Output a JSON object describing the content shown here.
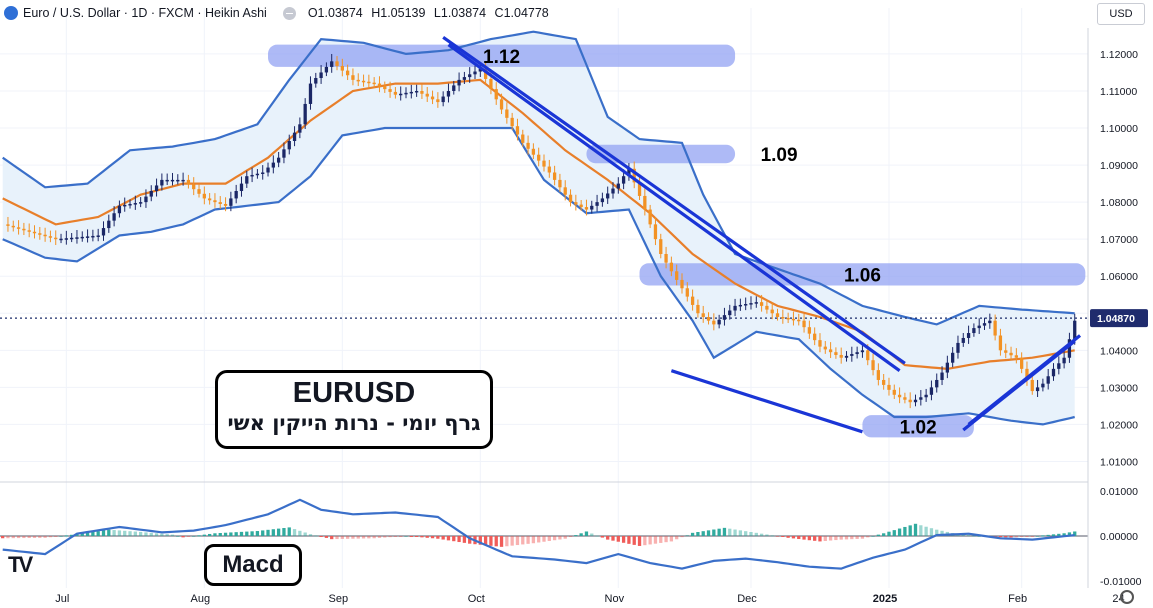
{
  "header": {
    "title": "Euro / U.S. Dollar · 1D · FXCM · Heikin Ashi",
    "open": "O1.03874",
    "high": "H1.05139",
    "low": "L1.03874",
    "close": "C1.04778"
  },
  "currency_label": "USD",
  "overlay": {
    "symbol": "EURUSD",
    "subtitle": "גרף יומי - נרות הייקין אשי",
    "indicator_label": "Macd"
  },
  "logo": "TV",
  "colors": {
    "up": "#1b2766",
    "down": "#f29224",
    "ma": "#e87f2a",
    "band": "#3a6fc9",
    "band_fill": "#e8f2fb",
    "zone": "#8f9ff3",
    "trend": "#1a35d6",
    "macd_line": "#3a6fc9",
    "hist_up": "#26a69a",
    "hist_down": "#ef5350"
  },
  "chart_data": [
    {
      "type": "candlestick",
      "chart_style": "Heikin Ashi",
      "ylim": [
        1.005,
        1.127
      ],
      "y_ticks": [
        "1.12000",
        "1.11000",
        "1.10000",
        "1.09000",
        "1.08000",
        "1.07000",
        "1.06000",
        "1.05000",
        "1.04000",
        "1.03000",
        "1.02000",
        "1.01000"
      ],
      "x_ticks": [
        "Jul",
        "Aug",
        "Sep",
        "Oct",
        "Nov",
        "Dec",
        "2025",
        "Feb",
        "24"
      ],
      "last_price": "1.04870",
      "path": [
        [
          0,
          1.074
        ],
        [
          10,
          1.07
        ],
        [
          18,
          1.071
        ],
        [
          22,
          1.079
        ],
        [
          26,
          1.08
        ],
        [
          30,
          1.086
        ],
        [
          34,
          1.086
        ],
        [
          38,
          1.081
        ],
        [
          42,
          1.079
        ],
        [
          46,
          1.087
        ],
        [
          49,
          1.088
        ],
        [
          52,
          1.092
        ],
        [
          56,
          1.101
        ],
        [
          58,
          1.112
        ],
        [
          62,
          1.118
        ],
        [
          66,
          1.113
        ],
        [
          70,
          1.112
        ],
        [
          74,
          1.109
        ],
        [
          78,
          1.11
        ],
        [
          82,
          1.107
        ],
        [
          86,
          1.113
        ],
        [
          90,
          1.116
        ],
        [
          94,
          1.105
        ],
        [
          98,
          1.096
        ],
        [
          103,
          1.088
        ],
        [
          107,
          1.08
        ],
        [
          110,
          1.078
        ],
        [
          113,
          1.081
        ],
        [
          116,
          1.085
        ],
        [
          118,
          1.089
        ],
        [
          121,
          1.078
        ],
        [
          124,
          1.066
        ],
        [
          127,
          1.059
        ],
        [
          131,
          1.05
        ],
        [
          134,
          1.047
        ],
        [
          138,
          1.052
        ],
        [
          142,
          1.053
        ],
        [
          146,
          1.049
        ],
        [
          150,
          1.048
        ],
        [
          154,
          1.041
        ],
        [
          158,
          1.038
        ],
        [
          162,
          1.04
        ],
        [
          165,
          1.032
        ],
        [
          168,
          1.028
        ],
        [
          171,
          1.026
        ],
        [
          174,
          1.028
        ],
        [
          177,
          1.034
        ],
        [
          180,
          1.042
        ],
        [
          183,
          1.046
        ],
        [
          186,
          1.048
        ],
        [
          188,
          1.04
        ],
        [
          191,
          1.038
        ],
        [
          194,
          1.029
        ],
        [
          196,
          1.031
        ],
        [
          198,
          1.035
        ],
        [
          200,
          1.038
        ],
        [
          202,
          1.048
        ]
      ],
      "ma_path": [
        [
          0,
          1.081
        ],
        [
          10,
          1.074
        ],
        [
          18,
          1.076
        ],
        [
          26,
          1.082
        ],
        [
          34,
          1.085
        ],
        [
          42,
          1.085
        ],
        [
          50,
          1.092
        ],
        [
          58,
          1.102
        ],
        [
          66,
          1.11
        ],
        [
          74,
          1.112
        ],
        [
          82,
          1.112
        ],
        [
          90,
          1.113
        ],
        [
          98,
          1.104
        ],
        [
          106,
          1.094
        ],
        [
          114,
          1.086
        ],
        [
          122,
          1.077
        ],
        [
          130,
          1.066
        ],
        [
          138,
          1.058
        ],
        [
          146,
          1.052
        ],
        [
          154,
          1.049
        ],
        [
          162,
          1.045
        ],
        [
          170,
          1.036
        ],
        [
          178,
          1.035
        ],
        [
          186,
          1.037
        ],
        [
          194,
          1.038
        ],
        [
          202,
          1.04
        ]
      ],
      "band_upper_path": [
        [
          0,
          1.092
        ],
        [
          8,
          1.084
        ],
        [
          16,
          1.085
        ],
        [
          24,
          1.094
        ],
        [
          32,
          1.095
        ],
        [
          40,
          1.097
        ],
        [
          48,
          1.101
        ],
        [
          54,
          1.113
        ],
        [
          60,
          1.124
        ],
        [
          68,
          1.123
        ],
        [
          76,
          1.12
        ],
        [
          84,
          1.121
        ],
        [
          92,
          1.124
        ],
        [
          100,
          1.126
        ],
        [
          108,
          1.124
        ],
        [
          114,
          1.103
        ],
        [
          120,
          1.097
        ],
        [
          128,
          1.096
        ],
        [
          132,
          1.082
        ],
        [
          138,
          1.066
        ],
        [
          146,
          1.062
        ],
        [
          154,
          1.058
        ],
        [
          162,
          1.052
        ],
        [
          170,
          1.049
        ],
        [
          176,
          1.047
        ],
        [
          184,
          1.052
        ],
        [
          192,
          1.051
        ],
        [
          202,
          1.05
        ]
      ],
      "band_lower_path": [
        [
          0,
          1.07
        ],
        [
          8,
          1.065
        ],
        [
          14,
          1.064
        ],
        [
          22,
          1.071
        ],
        [
          28,
          1.072
        ],
        [
          34,
          1.074
        ],
        [
          40,
          1.078
        ],
        [
          46,
          1.079
        ],
        [
          52,
          1.08
        ],
        [
          58,
          1.087
        ],
        [
          64,
          1.098
        ],
        [
          72,
          1.1
        ],
        [
          80,
          1.1
        ],
        [
          88,
          1.1
        ],
        [
          96,
          1.1
        ],
        [
          102,
          1.086
        ],
        [
          110,
          1.077
        ],
        [
          118,
          1.078
        ],
        [
          124,
          1.06
        ],
        [
          130,
          1.048
        ],
        [
          134,
          1.038
        ],
        [
          142,
          1.045
        ],
        [
          150,
          1.043
        ],
        [
          156,
          1.035
        ],
        [
          162,
          1.028
        ],
        [
          168,
          1.022
        ],
        [
          174,
          1.022
        ],
        [
          182,
          1.023
        ],
        [
          190,
          1.021
        ],
        [
          196,
          1.02
        ],
        [
          202,
          1.022
        ]
      ],
      "zones": [
        {
          "label": "1.12",
          "x0": 50,
          "x1": 138,
          "y0": 1.1165,
          "y1": 1.1225
        },
        {
          "label": "1.09",
          "x0": 110,
          "x1": 138,
          "y0": 1.0905,
          "y1": 1.0955
        },
        {
          "label": "1.06",
          "x0": 120,
          "x1": 204,
          "y0": 1.0575,
          "y1": 1.0635
        },
        {
          "label": "1.02",
          "x0": 162,
          "x1": 183,
          "y0": 1.0165,
          "y1": 1.0225
        }
      ],
      "trendlines": [
        {
          "x0": 83,
          "y0": 1.1245,
          "x1": 170,
          "y1": 1.0365
        },
        {
          "x0": 84,
          "y0": 1.1225,
          "x1": 169,
          "y1": 1.0345
        },
        {
          "x0": 126,
          "y0": 1.0345,
          "x1": 162,
          "y1": 1.018
        },
        {
          "x0": 181,
          "y0": 1.0185,
          "x1": 202,
          "y1": 1.0425
        },
        {
          "x0": 182,
          "y0": 1.02,
          "x1": 203,
          "y1": 1.044
        }
      ]
    },
    {
      "type": "bar",
      "indicator": "MACD",
      "ylim": [
        -0.0115,
        0.0115
      ],
      "y_ticks": [
        "0.01000",
        "0.00000",
        "-0.01000"
      ],
      "hist_path": [
        [
          0,
          -0.0005
        ],
        [
          8,
          -0.0004
        ],
        [
          14,
          0.0004
        ],
        [
          20,
          0.0014
        ],
        [
          26,
          0.0009
        ],
        [
          32,
          0.0003
        ],
        [
          34,
          -0.0003
        ],
        [
          40,
          0.0006
        ],
        [
          48,
          0.0011
        ],
        [
          54,
          0.0019
        ],
        [
          58,
          0.0004
        ],
        [
          62,
          -0.0007
        ],
        [
          70,
          -0.0005
        ],
        [
          76,
          0.0
        ],
        [
          82,
          -0.0006
        ],
        [
          88,
          -0.0017
        ],
        [
          94,
          -0.0024
        ],
        [
          100,
          -0.0016
        ],
        [
          106,
          -0.0006
        ],
        [
          110,
          0.001
        ],
        [
          114,
          -0.0008
        ],
        [
          120,
          -0.0022
        ],
        [
          126,
          -0.0012
        ],
        [
          130,
          0.0007
        ],
        [
          136,
          0.0018
        ],
        [
          142,
          0.0007
        ],
        [
          148,
          -0.0004
        ],
        [
          154,
          -0.0012
        ],
        [
          158,
          -0.0008
        ],
        [
          162,
          -0.0006
        ],
        [
          166,
          0.0006
        ],
        [
          172,
          0.0027
        ],
        [
          176,
          0.0014
        ],
        [
          180,
          0.0004
        ],
        [
          186,
          -0.0002
        ],
        [
          190,
          -0.0003
        ],
        [
          194,
          -0.0001
        ],
        [
          200,
          0.0006
        ],
        [
          202,
          0.001
        ]
      ],
      "macd_line_path": [
        [
          0,
          -0.003
        ],
        [
          8,
          -0.004
        ],
        [
          14,
          0.0005
        ],
        [
          22,
          0.002
        ],
        [
          30,
          0.0008
        ],
        [
          36,
          0.0012
        ],
        [
          42,
          0.0024
        ],
        [
          50,
          0.0048
        ],
        [
          56,
          0.008
        ],
        [
          60,
          0.0058
        ],
        [
          66,
          0.0048
        ],
        [
          74,
          0.0052
        ],
        [
          82,
          0.0042
        ],
        [
          88,
          -0.0005
        ],
        [
          96,
          -0.0045
        ],
        [
          104,
          -0.0052
        ],
        [
          110,
          -0.006
        ],
        [
          116,
          -0.004
        ],
        [
          122,
          -0.006
        ],
        [
          128,
          -0.0072
        ],
        [
          134,
          -0.0055
        ],
        [
          140,
          -0.005
        ],
        [
          146,
          -0.0058
        ],
        [
          152,
          -0.0068
        ],
        [
          158,
          -0.0072
        ],
        [
          164,
          -0.0048
        ],
        [
          170,
          -0.003
        ],
        [
          176,
          0.0002
        ],
        [
          182,
          0.0005
        ],
        [
          188,
          -0.0005
        ],
        [
          194,
          -0.0008
        ],
        [
          202,
          0.0002
        ]
      ]
    }
  ]
}
